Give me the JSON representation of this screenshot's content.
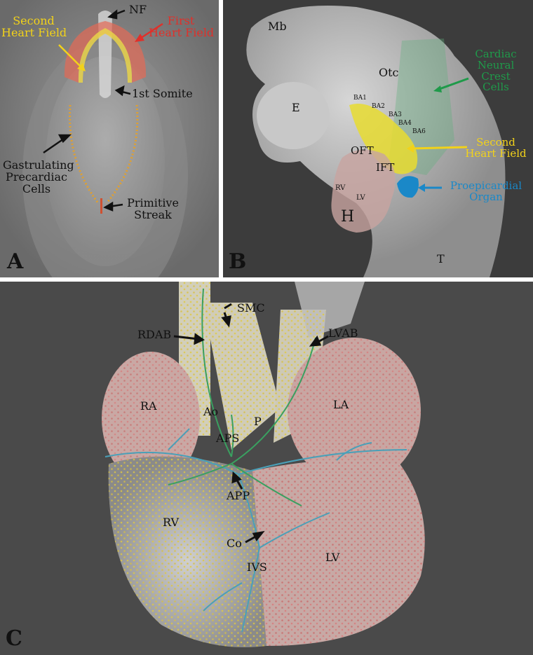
{
  "panel_a": {
    "letter": "A",
    "nf": "NF",
    "second_heart_field": [
      "Second",
      "Heart Field"
    ],
    "first_heart_field": [
      "First",
      "Heart Field"
    ],
    "first_somite": "1st Somite",
    "gastrulating": [
      "Gastrulating",
      "Precardiac",
      "Cells"
    ],
    "primitive_streak": [
      "Primitive",
      "Streak"
    ],
    "colors": {
      "second_heart_field": "#f2d21a",
      "first_heart_field": "#e0302a"
    }
  },
  "panel_b": {
    "letter": "B",
    "mb": "Mb",
    "otc": "Otc",
    "e": "E",
    "ba1": "BA1",
    "ba2": "BA2",
    "ba3": "BA3",
    "ba4": "BA4",
    "ba6": "BA6",
    "oft": "OFT",
    "ift": "IFT",
    "rv": "RV",
    "lv": "LV",
    "h": "H",
    "t": "T",
    "cardiac_neural_crest": [
      "Cardiac",
      "Neural",
      "Crest",
      "Cells"
    ],
    "second_heart_field": [
      "Second",
      "Heart Field"
    ],
    "proepicardial": [
      "Proepicardial",
      "Organ"
    ],
    "colors": {
      "neural_crest": "#1f9a4a",
      "second_heart_field": "#f2d21a",
      "proepicardial": "#1a88c8"
    }
  },
  "panel_c": {
    "letter": "C",
    "smc": "SMC",
    "rdab": "RDAB",
    "lvab": "LVAB",
    "ra": "RA",
    "la": "LA",
    "ao": "Ao",
    "p": "P",
    "aps": "APS",
    "app": "APP",
    "rv": "RV",
    "lv": "LV",
    "co": "Co",
    "ivs": "IVS"
  }
}
